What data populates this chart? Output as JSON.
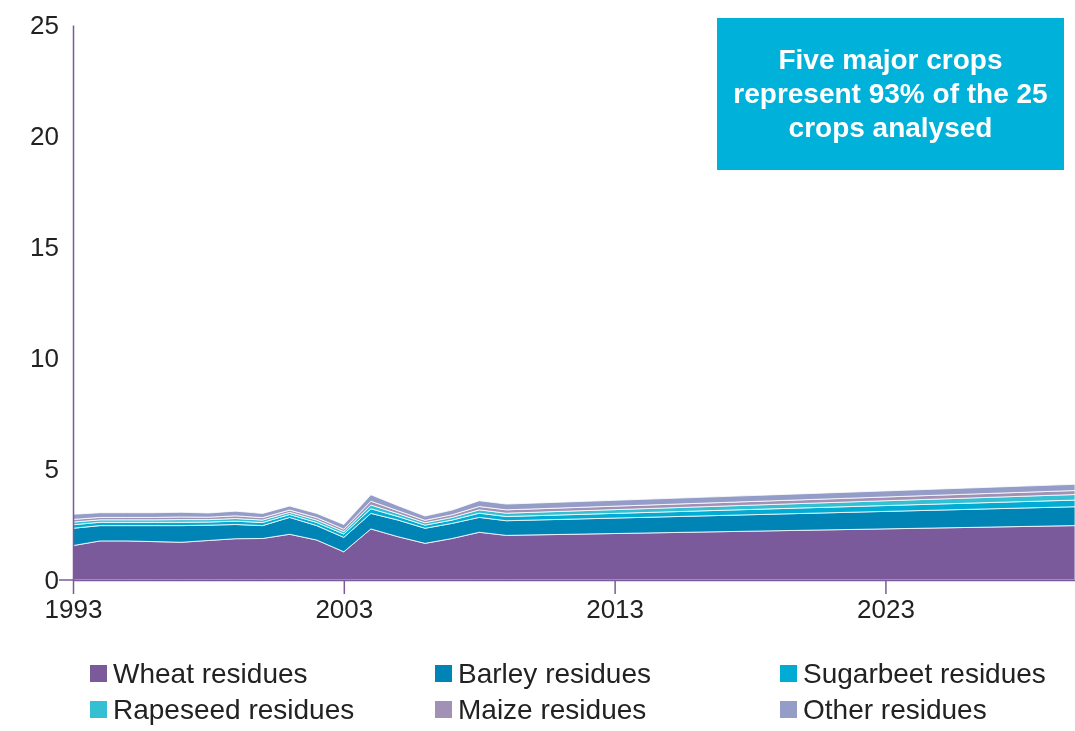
{
  "chart_data": {
    "type": "area",
    "stacked": true,
    "x": [
      1993,
      1994,
      1995,
      1996,
      1997,
      1998,
      1999,
      2000,
      2001,
      2002,
      2003,
      2004,
      2005,
      2006,
      2007,
      2008,
      2009,
      2030
    ],
    "series": [
      {
        "name": "Wheat residues",
        "color": "#7b5a9b",
        "values": [
          1.55,
          1.76,
          1.76,
          1.73,
          1.7,
          1.78,
          1.86,
          1.87,
          2.06,
          1.8,
          1.27,
          2.3,
          1.95,
          1.65,
          1.87,
          2.15,
          2.01,
          2.45
        ]
      },
      {
        "name": "Barley residues",
        "color": "#0083b5",
        "values": [
          0.78,
          0.69,
          0.69,
          0.72,
          0.75,
          0.69,
          0.64,
          0.58,
          0.76,
          0.65,
          0.65,
          0.7,
          0.75,
          0.68,
          0.68,
          0.67,
          0.66,
          0.85
        ]
      },
      {
        "name": "Sugarbeet residues",
        "color": "#00acd3",
        "values": [
          0.16,
          0.15,
          0.15,
          0.15,
          0.15,
          0.14,
          0.15,
          0.14,
          0.13,
          0.14,
          0.15,
          0.21,
          0.16,
          0.14,
          0.15,
          0.19,
          0.19,
          0.3
        ]
      },
      {
        "name": "Rapeseed residues",
        "color": "#34bfd2",
        "values": [
          0.12,
          0.11,
          0.11,
          0.11,
          0.12,
          0.11,
          0.12,
          0.11,
          0.1,
          0.11,
          0.11,
          0.17,
          0.13,
          0.11,
          0.12,
          0.15,
          0.15,
          0.25
        ]
      },
      {
        "name": "Maize residues",
        "color": "#a291b5",
        "values": [
          0.12,
          0.11,
          0.11,
          0.11,
          0.12,
          0.11,
          0.12,
          0.11,
          0.1,
          0.11,
          0.11,
          0.17,
          0.13,
          0.11,
          0.12,
          0.15,
          0.15,
          0.18
        ]
      },
      {
        "name": "Other residues",
        "color": "#949dc8",
        "values": [
          0.23,
          0.21,
          0.21,
          0.21,
          0.21,
          0.19,
          0.21,
          0.19,
          0.18,
          0.19,
          0.21,
          0.29,
          0.23,
          0.19,
          0.21,
          0.26,
          0.26,
          0.28
        ]
      }
    ],
    "xlim": [
      1993,
      2030
    ],
    "xticks": [
      1993,
      2003,
      2013,
      2023
    ],
    "ylim": [
      0,
      25
    ],
    "yticks": [
      0,
      5,
      10,
      15,
      20,
      25
    ],
    "legend": "bottom",
    "grid": false,
    "annotations": [
      "Five major crops represent 93% of the 25 crops analysed"
    ]
  }
}
